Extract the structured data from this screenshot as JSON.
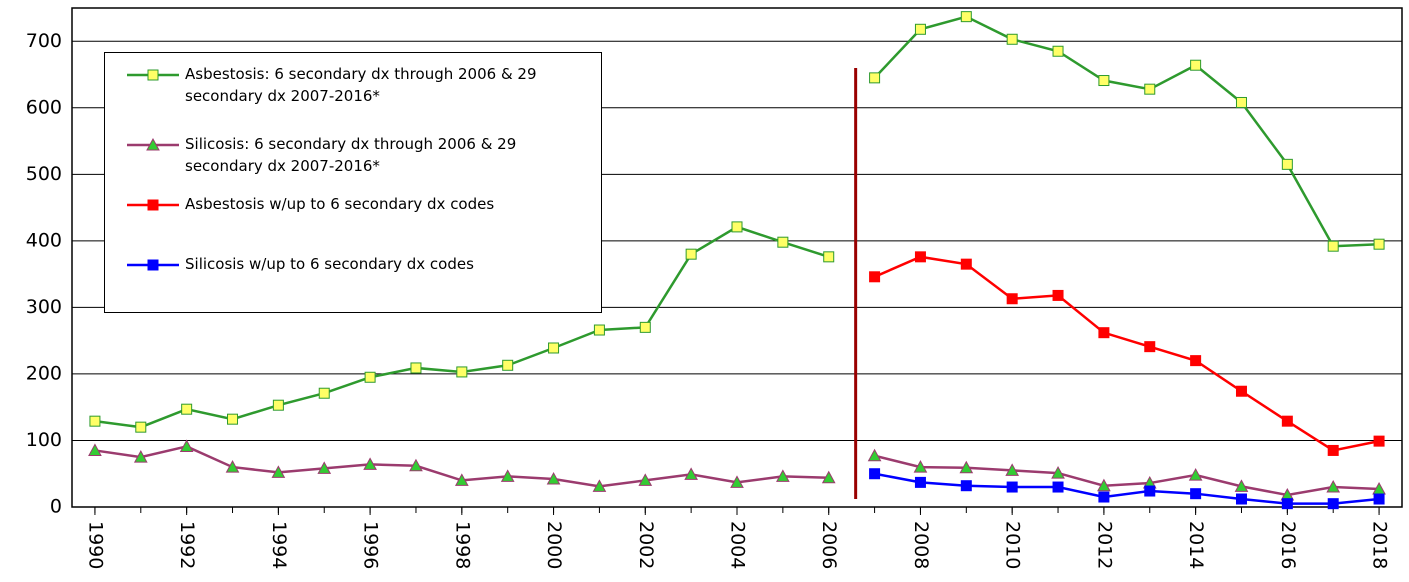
{
  "chart_data": {
    "type": "line",
    "x": [
      1990,
      1991,
      1992,
      1993,
      1994,
      1995,
      1996,
      1997,
      1998,
      1999,
      2000,
      2001,
      2002,
      2003,
      2004,
      2005,
      2006,
      2007,
      2008,
      2009,
      2010,
      2011,
      2012,
      2013,
      2014,
      2015,
      2016,
      2017,
      2018
    ],
    "series": [
      {
        "name": "Asbestosis: 6 secondary dx through 2006 & 29 secondary dx 2007-2016*",
        "color": "#2e9a2e",
        "marker": "square",
        "marker_color": "#ffff66",
        "values": [
          129,
          120,
          147,
          132,
          153,
          171,
          195,
          209,
          203,
          213,
          239,
          266,
          270,
          380,
          421,
          398,
          376,
          645,
          718,
          737,
          703,
          685,
          641,
          628,
          664,
          608,
          515,
          392,
          395
        ]
      },
      {
        "name": "Silicosis: 6 secondary dx through 2006 & 29 secondary dx 2007-2016*",
        "color": "#9b3b6e",
        "marker": "triangle",
        "marker_color": "#33cc33",
        "values": [
          85,
          75,
          91,
          60,
          52,
          58,
          64,
          62,
          40,
          46,
          42,
          31,
          40,
          49,
          37,
          46,
          44,
          77,
          60,
          59,
          55,
          51,
          32,
          36,
          48,
          31,
          18,
          30,
          27
        ]
      },
      {
        "name": "Asbestosis w/up to 6 secondary dx codes",
        "color": "#ff0000",
        "marker": "square",
        "marker_color": "#ff0000",
        "values": [
          null,
          null,
          null,
          null,
          null,
          null,
          null,
          null,
          null,
          null,
          null,
          null,
          null,
          null,
          null,
          null,
          null,
          346,
          376,
          365,
          313,
          318,
          262,
          241,
          220,
          174,
          129,
          85,
          99
        ]
      },
      {
        "name": "Silicosis w/up to 6 secondary dx codes",
        "color": "#0000ff",
        "marker": "square",
        "marker_color": "#0000ff",
        "values": [
          null,
          null,
          null,
          null,
          null,
          null,
          null,
          null,
          null,
          null,
          null,
          null,
          null,
          null,
          null,
          null,
          null,
          50,
          37,
          32,
          30,
          30,
          15,
          24,
          20,
          12,
          5,
          5,
          12
        ]
      }
    ],
    "xlim": [
      1989.5,
      2018.5
    ],
    "xticks": [
      1990,
      1992,
      1994,
      1996,
      1998,
      2000,
      2002,
      2004,
      2006,
      2008,
      2010,
      2012,
      2014,
      2016,
      2018
    ],
    "ylim": [
      0,
      750
    ],
    "yticks": [
      0,
      100,
      200,
      300,
      400,
      500,
      600,
      700
    ],
    "grid": true,
    "separator_color": "#990000"
  }
}
